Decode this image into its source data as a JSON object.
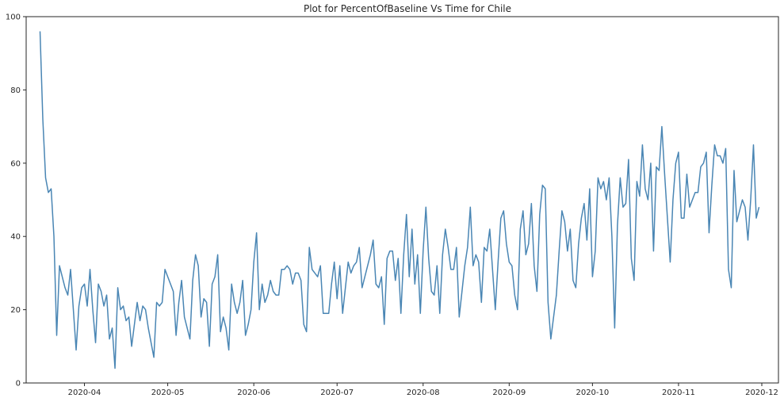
{
  "chart_data": {
    "type": "line",
    "title": "Plot for PercentOfBaseline Vs Time for Chile",
    "xlabel": "",
    "ylabel": "",
    "x_start": "2020-03-16",
    "x_step_days": 1,
    "xlim": [
      "2020-03-11",
      "2020-12-07"
    ],
    "ylim": [
      0,
      100
    ],
    "x_ticks": [
      "2020-04-01",
      "2020-05-01",
      "2020-06-01",
      "2020-07-01",
      "2020-08-01",
      "2020-09-01",
      "2020-10-01",
      "2020-11-01",
      "2020-12-01"
    ],
    "x_tick_labels": [
      "2020-04",
      "2020-05",
      "2020-06",
      "2020-07",
      "2020-08",
      "2020-09",
      "2020-10",
      "2020-11",
      "2020-12"
    ],
    "y_ticks": [
      0,
      20,
      40,
      60,
      80,
      100
    ],
    "y_tick_labels": [
      "0",
      "20",
      "40",
      "60",
      "80",
      "100"
    ],
    "grid": false,
    "line_color": "#4a86b4",
    "series": [
      {
        "values": [
          96,
          72,
          56,
          52,
          53,
          40,
          13,
          32,
          29,
          26,
          24,
          31,
          20,
          9,
          21,
          26,
          27,
          21,
          31,
          20,
          11,
          27,
          25,
          21,
          24,
          12,
          15,
          4,
          26,
          20,
          21,
          17,
          18,
          10,
          16,
          22,
          17,
          21,
          20,
          15,
          11,
          7,
          22,
          21,
          22,
          31,
          29,
          27,
          25,
          13,
          22,
          28,
          18,
          15,
          12,
          28,
          35,
          32,
          18,
          23,
          22,
          10,
          27,
          29,
          35,
          14,
          18,
          15,
          9,
          27,
          22,
          19,
          22,
          28,
          13,
          16,
          20,
          33,
          41,
          20,
          27,
          22,
          24,
          28,
          25,
          24,
          24,
          31,
          31,
          32,
          31,
          27,
          30,
          30,
          28,
          16,
          14,
          37,
          31,
          30,
          29,
          32,
          19,
          19,
          19,
          27,
          33,
          23,
          32,
          19,
          26,
          33,
          30,
          32,
          33,
          37,
          26,
          29,
          32,
          35,
          39,
          27,
          26,
          29,
          16,
          34,
          36,
          36,
          28,
          34,
          19,
          35,
          46,
          29,
          42,
          27,
          35,
          19,
          36,
          48,
          34,
          25,
          24,
          32,
          19,
          35,
          42,
          37,
          31,
          31,
          37,
          18,
          25,
          32,
          37,
          48,
          32,
          35,
          33,
          22,
          37,
          36,
          42,
          31,
          20,
          33,
          45,
          47,
          38,
          33,
          32,
          24,
          20,
          42,
          47,
          35,
          38,
          49,
          32,
          25,
          46,
          54,
          53,
          22,
          12,
          18,
          24,
          36,
          47,
          44,
          36,
          42,
          28,
          26,
          38,
          45,
          49,
          39,
          53,
          29,
          36,
          56,
          53,
          55,
          50,
          56,
          40,
          15,
          43,
          56,
          48,
          49,
          61,
          34,
          28,
          55,
          51,
          65,
          53,
          50,
          60,
          36,
          59,
          58,
          70,
          57,
          45,
          33,
          50,
          60,
          63,
          45,
          45,
          57,
          48,
          50,
          52,
          52,
          59,
          60,
          63,
          41,
          54,
          65,
          62,
          62,
          60,
          64,
          31,
          26,
          58,
          44,
          47,
          50,
          48,
          39,
          50,
          65,
          45,
          48
        ]
      }
    ]
  }
}
